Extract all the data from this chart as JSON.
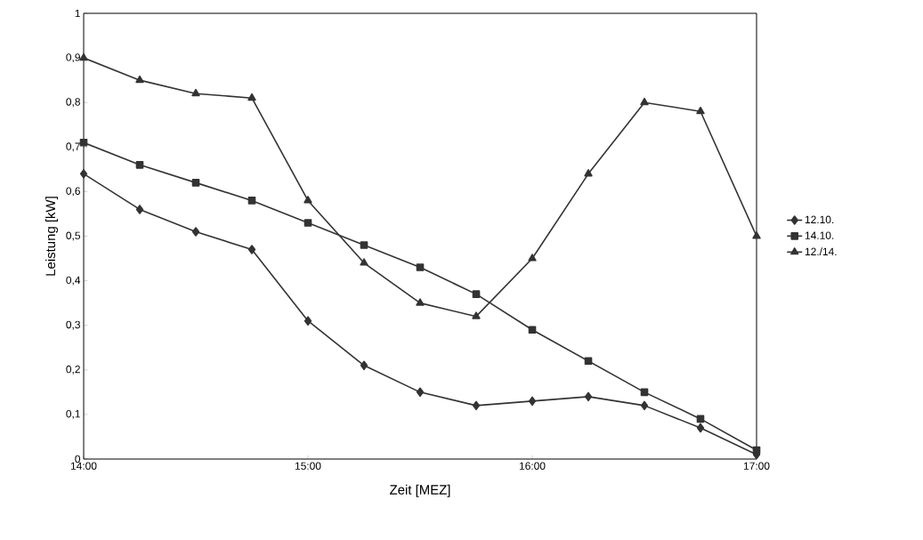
{
  "chart_data": {
    "type": "line",
    "xlabel": "Zeit [MEZ]",
    "ylabel": "Leistung [kW]",
    "x": [
      14,
      14.25,
      14.5,
      14.75,
      15,
      15.25,
      15.5,
      15.75,
      16,
      16.25,
      16.5,
      16.75,
      17
    ],
    "series": [
      {
        "name": "12.10.",
        "color": "#333333",
        "marker": "diamond",
        "values": [
          0.64,
          0.56,
          0.51,
          0.47,
          0.31,
          0.21,
          0.15,
          0.12,
          0.13,
          0.14,
          0.12,
          0.07,
          0.01
        ]
      },
      {
        "name": "14.10.",
        "color": "#333333",
        "marker": "square",
        "values": [
          0.71,
          0.66,
          0.62,
          0.58,
          0.53,
          0.48,
          0.43,
          0.37,
          0.29,
          0.22,
          0.15,
          0.09,
          0.02
        ]
      },
      {
        "name": "12./14.",
        "color": "#333333",
        "marker": "triangle",
        "values": [
          0.9,
          0.85,
          0.82,
          0.81,
          0.58,
          0.44,
          0.35,
          0.32,
          0.45,
          0.64,
          0.8,
          0.78,
          0.5
        ]
      }
    ],
    "xlim": [
      14,
      17
    ],
    "ylim": [
      0,
      1
    ],
    "xticks": [
      {
        "value": 14,
        "label": "14:00"
      },
      {
        "value": 15,
        "label": "15:00"
      },
      {
        "value": 16,
        "label": "16:00"
      },
      {
        "value": 17,
        "label": "17:00"
      }
    ],
    "yticks": [
      0,
      {
        "value": 0.1,
        "label": "0,1"
      },
      {
        "value": 0.2,
        "label": "0,2"
      },
      {
        "value": 0.3,
        "label": "0,3"
      },
      {
        "value": 0.4,
        "label": "0,4"
      },
      {
        "value": 0.5,
        "label": "0,5"
      },
      {
        "value": 0.6,
        "label": "0,6"
      },
      {
        "value": 0.7,
        "label": "0,7"
      },
      {
        "value": 0.8,
        "label": "0,8"
      },
      {
        "value": 0.9,
        "label": "0,9"
      },
      1
    ],
    "legend": "right",
    "line_style": "solid",
    "grid": false
  }
}
